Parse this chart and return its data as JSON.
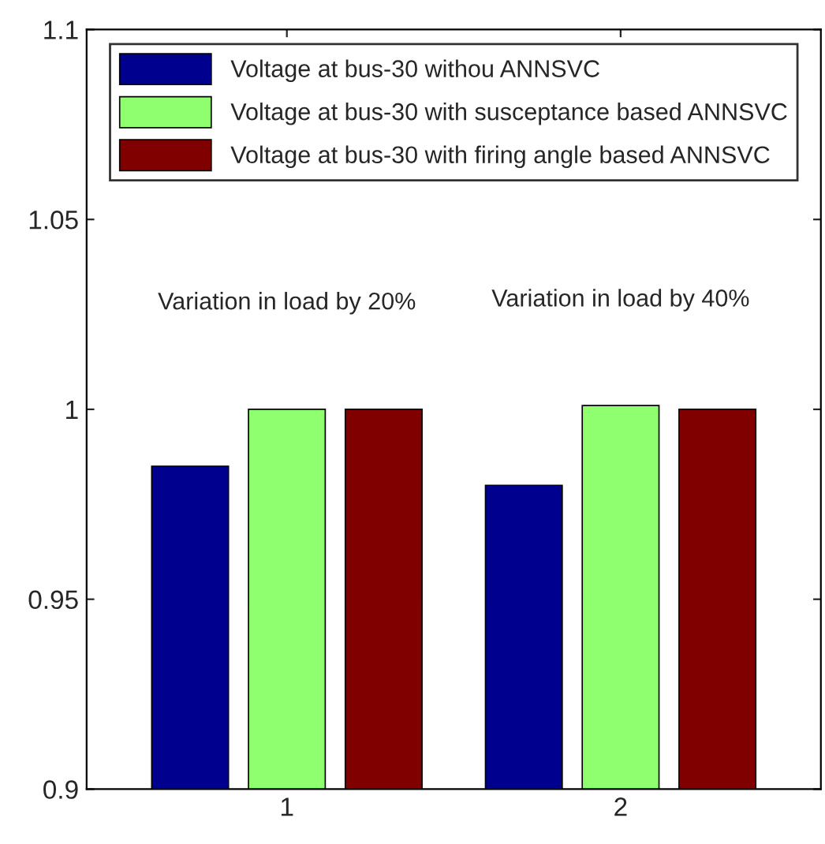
{
  "chart_data": {
    "type": "bar",
    "categories": [
      "1",
      "2"
    ],
    "series": [
      {
        "name": "Voltage at bus-30 withou ANNSVC",
        "color": "#00008f",
        "values": [
          0.985,
          0.98
        ]
      },
      {
        "name": "Voltage at bus-30 with susceptance based ANNSVC",
        "color": "#8fff6f",
        "values": [
          1.0,
          1.001
        ]
      },
      {
        "name": "Voltage at bus-30 with firing angle based ANNSVC",
        "color": "#800000",
        "values": [
          1.0,
          1.0
        ]
      }
    ],
    "ylim": [
      0.9,
      1.1
    ],
    "yticks": [
      0.9,
      0.95,
      1,
      1.05,
      1.1
    ],
    "annotations": [
      "Variation in load by 20%",
      "Variation in load by 40%"
    ],
    "legend": "top",
    "grid": false
  }
}
